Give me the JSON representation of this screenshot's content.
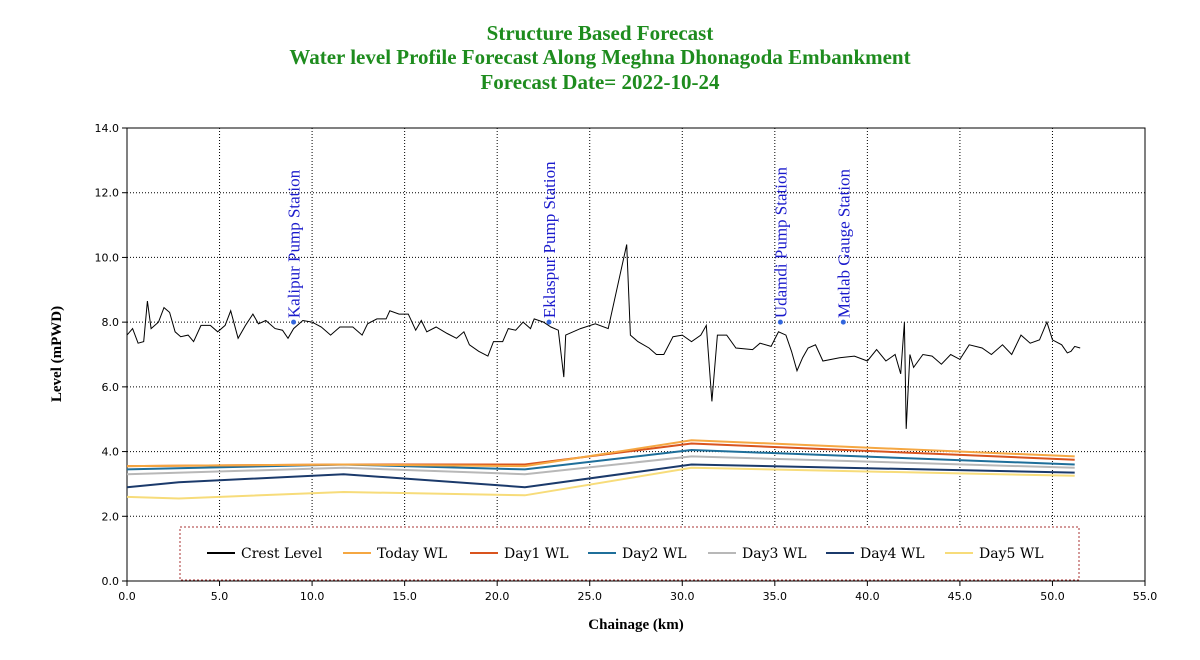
{
  "chart_data": {
    "type": "line",
    "title": "Structure Based Forecast",
    "subtitle": "Water level Profile Forecast Along Meghna Dhonagoda Embankment",
    "forecast_date": "Forecast Date= 2022-10-24",
    "xlabel": "Chainage (km)",
    "ylabel": "Level (mPWD)",
    "xlim": [
      0,
      55
    ],
    "ylim": [
      0,
      14
    ],
    "grid": true,
    "xticks": [
      {
        "value": 0,
        "label": "0.0"
      },
      {
        "value": 5,
        "label": "5.0"
      },
      {
        "value": 10,
        "label": "10.0"
      },
      {
        "value": 15,
        "label": "15.0"
      },
      {
        "value": 20,
        "label": "20.0"
      },
      {
        "value": 25,
        "label": "25.0"
      },
      {
        "value": 30,
        "label": "30.0"
      },
      {
        "value": 35,
        "label": "35.0"
      },
      {
        "value": 40,
        "label": "40.0"
      },
      {
        "value": 45,
        "label": "45.0"
      },
      {
        "value": 50,
        "label": "50.0"
      },
      {
        "value": 55,
        "label": "55.0"
      }
    ],
    "yticks": [
      {
        "value": 0,
        "label": "0.0"
      },
      {
        "value": 2,
        "label": "2.0"
      },
      {
        "value": 4,
        "label": "4.0"
      },
      {
        "value": 6,
        "label": "6.0"
      },
      {
        "value": 8,
        "label": "8.0"
      },
      {
        "value": 10,
        "label": "10.0"
      },
      {
        "value": 12,
        "label": "12.0"
      },
      {
        "value": 14,
        "label": "14.0"
      }
    ],
    "series": [
      {
        "name": "Crest Level",
        "color": "#000000",
        "x": [
          0,
          0.3,
          0.6,
          0.9,
          1.1,
          1.3,
          1.7,
          2.0,
          2.3,
          2.6,
          2.9,
          3.3,
          3.6,
          4.0,
          4.5,
          4.9,
          5.3,
          5.6,
          6.0,
          6.4,
          6.8,
          7.1,
          7.5,
          8.0,
          8.4,
          8.7,
          9.0,
          9.5,
          10.0,
          10.5,
          11.0,
          11.5,
          12.2,
          12.7,
          13.0,
          13.5,
          14.0,
          14.2,
          14.7,
          15.2,
          15.6,
          15.9,
          16.2,
          16.7,
          17.3,
          17.8,
          18.2,
          18.5,
          19.0,
          19.5,
          19.8,
          20.3,
          20.6,
          21.0,
          21.4,
          21.8,
          22.0,
          22.5,
          22.9,
          23.3,
          23.6,
          23.7,
          24.5,
          25.3,
          26.0,
          27.0,
          27.2,
          27.6,
          28.2,
          28.6,
          29.0,
          29.5,
          30.0,
          30.5,
          31.0,
          31.3,
          31.6,
          31.9,
          32.4,
          32.9,
          33.8,
          34.2,
          34.8,
          35.2,
          35.6,
          35.9,
          36.2,
          36.5,
          36.8,
          37.2,
          37.6,
          38.5,
          39.3,
          40.0,
          40.5,
          41.0,
          41.5,
          41.8,
          42.0,
          42.1,
          42.3,
          42.5,
          43.0,
          43.5,
          44.0,
          44.5,
          45.0,
          45.5,
          46.2,
          46.7,
          47.3,
          47.8,
          48.3,
          48.8,
          49.3,
          49.7,
          50.0,
          50.5,
          50.8,
          51.0,
          51.2,
          51.5
        ],
        "values": [
          7.6,
          7.8,
          7.35,
          7.4,
          8.65,
          7.8,
          8.0,
          8.45,
          8.3,
          7.7,
          7.55,
          7.6,
          7.4,
          7.9,
          7.9,
          7.7,
          7.9,
          8.35,
          7.5,
          7.9,
          8.25,
          7.95,
          8.05,
          7.8,
          7.75,
          7.5,
          7.8,
          8.05,
          8.0,
          7.85,
          7.6,
          7.85,
          7.85,
          7.6,
          7.95,
          8.1,
          8.1,
          8.35,
          8.25,
          8.25,
          7.75,
          8.05,
          7.7,
          7.85,
          7.65,
          7.5,
          7.7,
          7.3,
          7.1,
          6.95,
          7.4,
          7.4,
          7.8,
          7.75,
          8.0,
          7.8,
          8.1,
          8.0,
          7.85,
          7.75,
          6.3,
          7.6,
          7.8,
          7.95,
          7.8,
          10.4,
          7.6,
          7.4,
          7.2,
          7.0,
          7.0,
          7.55,
          7.6,
          7.4,
          7.6,
          7.9,
          5.55,
          7.6,
          7.6,
          7.2,
          7.15,
          7.35,
          7.25,
          7.7,
          7.6,
          7.1,
          6.5,
          6.9,
          7.2,
          7.3,
          6.8,
          6.9,
          6.95,
          6.8,
          7.15,
          6.8,
          7.0,
          6.4,
          8.0,
          4.7,
          7.0,
          6.6,
          7.0,
          6.95,
          6.7,
          7.0,
          6.85,
          7.3,
          7.2,
          7.0,
          7.3,
          7.0,
          7.6,
          7.35,
          7.45,
          8.0,
          7.45,
          7.3,
          7.05,
          7.1,
          7.25,
          7.2
        ]
      },
      {
        "name": "Today WL",
        "color": "#f5a742",
        "x": [
          0,
          11.7,
          21.5,
          30.5,
          51.2
        ],
        "values": [
          3.55,
          3.6,
          3.55,
          4.35,
          3.85
        ]
      },
      {
        "name": "Day1 WL",
        "color": "#d9541e",
        "x": [
          0,
          11.7,
          21.5,
          30.5,
          51.2
        ],
        "values": [
          3.55,
          3.6,
          3.6,
          4.25,
          3.75
        ]
      },
      {
        "name": "Day2 WL",
        "color": "#1f6f9a",
        "x": [
          0,
          11.7,
          21.5,
          30.5,
          51.2
        ],
        "values": [
          3.45,
          3.6,
          3.45,
          4.05,
          3.6
        ]
      },
      {
        "name": "Day3 WL",
        "color": "#b8b8b8",
        "x": [
          0,
          11.7,
          21.5,
          30.5,
          51.2
        ],
        "values": [
          3.3,
          3.5,
          3.3,
          3.85,
          3.5
        ]
      },
      {
        "name": "Day4 WL",
        "color": "#1b3a6b",
        "x": [
          0,
          2.8,
          11.7,
          21.5,
          30.5,
          51.2
        ],
        "values": [
          2.9,
          3.05,
          3.3,
          2.9,
          3.6,
          3.35
        ]
      },
      {
        "name": "Day5 WL",
        "color": "#f7dc7a",
        "x": [
          0,
          2.8,
          11.7,
          21.5,
          30.5,
          51.2
        ],
        "values": [
          2.6,
          2.55,
          2.75,
          2.65,
          3.5,
          3.25
        ]
      }
    ],
    "annotations": [
      {
        "text": "Kalipur Pump Station",
        "x": 9.0,
        "y": 8.0
      },
      {
        "text": "Eklaspur Pump Station",
        "x": 22.8,
        "y": 8.0
      },
      {
        "text": "Udamdi Pump Station",
        "x": 35.3,
        "y": 8.0
      },
      {
        "text": "Matlab Gauge Station",
        "x": 38.7,
        "y": 8.0
      }
    ]
  }
}
